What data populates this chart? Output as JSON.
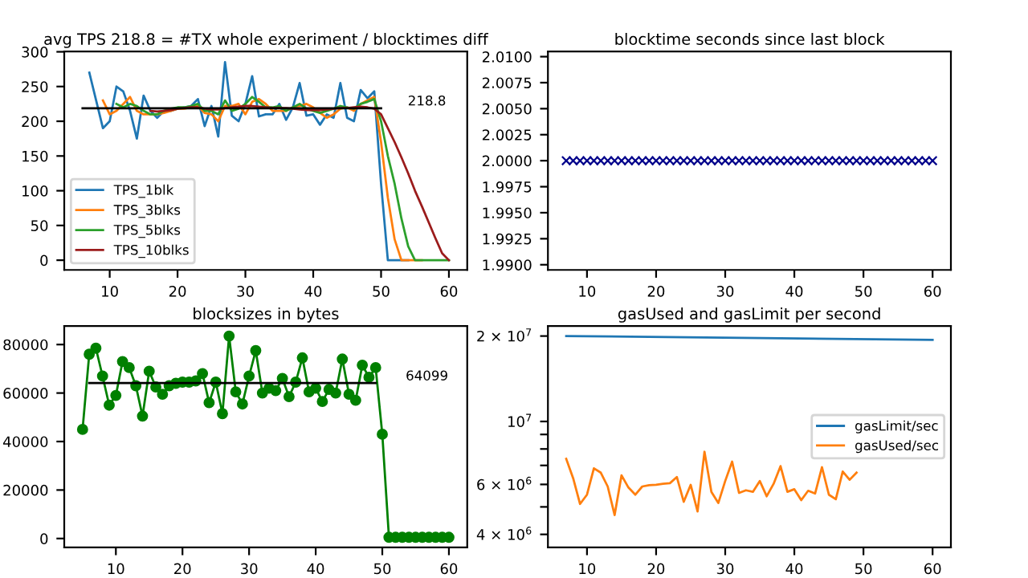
{
  "chart_data": [
    {
      "type": "line",
      "title": "avg TPS 218.8 = #TX whole experiment / blocktimes diff",
      "xlim": [
        3.3,
        62.7
      ],
      "xticks": [
        10,
        20,
        30,
        40,
        50,
        60
      ],
      "ylim": [
        -14,
        300.5
      ],
      "yticks": [
        0,
        50,
        100,
        150,
        200,
        250,
        300
      ],
      "legend": "lower left",
      "annotations": [
        "218.8"
      ],
      "series": [
        {
          "name": "TPS_1blk",
          "color": "#1f77b4",
          "x": [
            7,
            8,
            9,
            10,
            11,
            12,
            13,
            14,
            15,
            16,
            17,
            18,
            19,
            20,
            21,
            22,
            23,
            24,
            25,
            26,
            27,
            28,
            29,
            30,
            31,
            32,
            33,
            34,
            35,
            36,
            37,
            38,
            39,
            40,
            41,
            42,
            43,
            44,
            45,
            46,
            47,
            48,
            49,
            50,
            51,
            52,
            53,
            54
          ],
          "values": [
            270,
            230,
            190,
            200,
            250,
            243,
            215,
            175,
            237,
            215,
            205,
            215,
            215,
            218,
            220,
            222,
            232,
            193,
            222,
            178,
            285,
            208,
            200,
            225,
            265,
            207,
            210,
            210,
            225,
            202,
            220,
            255,
            208,
            210,
            195,
            210,
            205,
            255,
            205,
            200,
            245,
            233,
            243,
            110,
            0,
            0,
            0,
            0
          ]
        },
        {
          "name": "TPS_3blks",
          "color": "#ff7f0e",
          "x": [
            9,
            10,
            11,
            12,
            13,
            14,
            15,
            16,
            17,
            18,
            19,
            20,
            21,
            22,
            23,
            24,
            25,
            26,
            27,
            28,
            29,
            30,
            31,
            32,
            33,
            34,
            35,
            36,
            37,
            38,
            39,
            40,
            41,
            42,
            43,
            44,
            45,
            46,
            47,
            48,
            49,
            50,
            51,
            52,
            53,
            54,
            55,
            56
          ],
          "values": [
            230,
            210,
            215,
            225,
            235,
            215,
            210,
            210,
            210,
            212,
            215,
            218,
            218,
            220,
            222,
            212,
            210,
            200,
            222,
            222,
            225,
            210,
            228,
            232,
            225,
            215,
            215,
            215,
            220,
            222,
            225,
            220,
            212,
            205,
            210,
            218,
            220,
            215,
            225,
            230,
            235,
            170,
            90,
            30,
            0,
            0,
            0,
            0
          ]
        },
        {
          "name": "TPS_5blks",
          "color": "#2ca02c",
          "x": [
            11,
            12,
            13,
            14,
            15,
            16,
            17,
            18,
            19,
            20,
            21,
            22,
            23,
            24,
            25,
            26,
            27,
            28,
            29,
            30,
            31,
            32,
            33,
            34,
            35,
            36,
            37,
            38,
            39,
            40,
            41,
            42,
            43,
            44,
            45,
            46,
            47,
            48,
            49,
            50,
            51,
            52,
            53,
            54,
            55,
            56,
            57,
            58,
            59,
            60
          ],
          "values": [
            225,
            220,
            225,
            222,
            215,
            210,
            210,
            215,
            218,
            220,
            220,
            222,
            225,
            215,
            215,
            210,
            230,
            215,
            218,
            225,
            235,
            228,
            220,
            220,
            222,
            215,
            220,
            225,
            218,
            215,
            212,
            215,
            218,
            222,
            220,
            218,
            225,
            228,
            232,
            200,
            150,
            110,
            60,
            20,
            0,
            0,
            0,
            0,
            0,
            0
          ]
        },
        {
          "name": "TPS_10blks",
          "color": "#9b1c1c",
          "x": [
            16,
            17,
            18,
            19,
            20,
            21,
            22,
            23,
            24,
            25,
            26,
            27,
            28,
            29,
            30,
            31,
            32,
            33,
            34,
            35,
            36,
            37,
            38,
            39,
            40,
            41,
            42,
            43,
            44,
            45,
            46,
            47,
            48,
            49,
            50,
            51,
            52,
            53,
            54,
            55,
            56,
            57,
            58,
            59,
            60
          ],
          "values": [
            215,
            214,
            215,
            216,
            218,
            219,
            220,
            220,
            218,
            217,
            217,
            219,
            220,
            221,
            222,
            222,
            221,
            220,
            219,
            219,
            219,
            218,
            217,
            216,
            216,
            216,
            217,
            218,
            219,
            219,
            220,
            221,
            220,
            218,
            210,
            190,
            170,
            148,
            125,
            100,
            78,
            55,
            32,
            10,
            0
          ]
        },
        {
          "color": "#000000",
          "x": [
            6,
            50
          ],
          "values": [
            218.8,
            218.8
          ]
        }
      ]
    },
    {
      "type": "scatter",
      "title": "blocktime seconds since last block",
      "xlim": [
        4.35,
        62.65
      ],
      "xticks": [
        10,
        20,
        30,
        40,
        50,
        60
      ],
      "ylim": [
        1.9895,
        2.0105
      ],
      "yticks": [
        {
          "value": 1.99,
          "label": "1.9900"
        },
        {
          "value": 1.9925,
          "label": "1.9925"
        },
        {
          "value": 1.995,
          "label": "1.9950"
        },
        {
          "value": 1.9975,
          "label": "1.9975"
        },
        {
          "value": 2.0,
          "label": "2.0000"
        },
        {
          "value": 2.0025,
          "label": "2.0025"
        },
        {
          "value": 2.005,
          "label": "2.0050"
        },
        {
          "value": 2.0075,
          "label": "2.0075"
        },
        {
          "value": 2.01,
          "label": "2.0100"
        }
      ],
      "marker": "cross",
      "series": [
        {
          "color": "#00008b",
          "x": [
            7,
            8,
            9,
            10,
            11,
            12,
            13,
            14,
            15,
            16,
            17,
            18,
            19,
            20,
            21,
            22,
            23,
            24,
            25,
            26,
            27,
            28,
            29,
            30,
            31,
            32,
            33,
            34,
            35,
            36,
            37,
            38,
            39,
            40,
            41,
            42,
            43,
            44,
            45,
            46,
            47,
            48,
            49,
            50,
            51,
            52,
            53,
            54,
            55,
            56,
            57,
            58,
            59,
            60
          ],
          "values": [
            2.0,
            2.0,
            2.0,
            2.0,
            2.0,
            2.0,
            2.0,
            2.0,
            2.0,
            2.0,
            2.0,
            2.0,
            2.0,
            2.0,
            2.0,
            2.0,
            2.0,
            2.0,
            2.0,
            2.0,
            2.0,
            2.0,
            2.0,
            2.0,
            2.0,
            2.0,
            2.0,
            2.0,
            2.0,
            2.0,
            2.0,
            2.0,
            2.0,
            2.0,
            2.0,
            2.0,
            2.0,
            2.0,
            2.0,
            2.0,
            2.0,
            2.0,
            2.0,
            2.0,
            2.0,
            2.0,
            2.0,
            2.0,
            2.0,
            2.0,
            2.0,
            2.0,
            2.0,
            2.0
          ]
        }
      ]
    },
    {
      "type": "line",
      "title": "blocksizes in bytes",
      "xlim": [
        2.25,
        62.75
      ],
      "xticks": [
        10,
        20,
        30,
        40,
        50,
        60
      ],
      "ylim": [
        -3650,
        87650
      ],
      "yticks": [
        0,
        20000,
        40000,
        60000,
        80000
      ],
      "annotations": [
        "64099"
      ],
      "series": [
        {
          "color": "#008000",
          "marker": "circle",
          "x": [
            5,
            6,
            7,
            8,
            9,
            10,
            11,
            12,
            13,
            14,
            15,
            16,
            17,
            18,
            19,
            20,
            21,
            22,
            23,
            24,
            25,
            26,
            27,
            28,
            29,
            30,
            31,
            32,
            33,
            34,
            35,
            36,
            37,
            38,
            39,
            40,
            41,
            42,
            43,
            44,
            45,
            46,
            47,
            48,
            49,
            50,
            51,
            52,
            53,
            54,
            55,
            56,
            57,
            58,
            59,
            60
          ],
          "values": [
            45000,
            76000,
            78500,
            67000,
            55000,
            59000,
            73000,
            70500,
            63000,
            50500,
            69000,
            62500,
            59500,
            63000,
            64000,
            64500,
            64500,
            65000,
            68000,
            56000,
            64500,
            51500,
            83500,
            60500,
            55500,
            67000,
            77500,
            60000,
            62000,
            61000,
            66000,
            58500,
            64500,
            74500,
            60500,
            62000,
            56500,
            61500,
            60000,
            74000,
            59500,
            57000,
            71500,
            66500,
            70500,
            43000,
            500,
            500,
            500,
            500,
            500,
            500,
            500,
            500,
            500,
            500
          ]
        },
        {
          "color": "#000000",
          "x": [
            6,
            49
          ],
          "values": [
            64099,
            64099
          ]
        }
      ]
    },
    {
      "type": "line",
      "title": "gasUsed and gasLimit per second",
      "log": true,
      "xlim": [
        4.35,
        62.65
      ],
      "xticks": [
        10,
        20,
        30,
        40,
        50,
        60
      ],
      "ylim": [
        3600000,
        21700000
      ],
      "yticks": [
        {
          "value": 4000000,
          "label": "4 × 10$^{6}$"
        },
        {
          "value": 5000000,
          "label": null
        },
        {
          "value": 6000000,
          "label": "6 × 10$^{6}$"
        },
        {
          "value": 7000000,
          "label": null
        },
        {
          "value": 8000000,
          "label": null
        },
        {
          "value": 9000000,
          "label": null
        },
        {
          "value": 10000000,
          "label": "10$^{7}$"
        },
        {
          "value": 20000000,
          "label": "2 × 10$^{7}$"
        }
      ],
      "legend": "center right",
      "series": [
        {
          "name": "gasLimit/sec",
          "color": "#1f77b4",
          "x": [
            7,
            60
          ],
          "values": [
            20000000,
            19400000
          ]
        },
        {
          "name": "gasUsed/sec",
          "color": "#ff7f0e",
          "x": [
            7,
            8,
            9,
            10,
            11,
            12,
            13,
            14,
            15,
            16,
            17,
            18,
            19,
            20,
            21,
            22,
            23,
            24,
            25,
            26,
            27,
            28,
            29,
            30,
            31,
            32,
            33,
            34,
            35,
            36,
            37,
            38,
            39,
            40,
            41,
            42,
            43,
            44,
            45,
            46,
            47,
            48,
            49
          ],
          "values": [
            7380000,
            6310000,
            5120000,
            5520000,
            6840000,
            6600000,
            5900000,
            4680000,
            6460000,
            5850000,
            5520000,
            5900000,
            5960000,
            5980000,
            6030000,
            6060000,
            6370000,
            5210000,
            5980000,
            4820000,
            7820000,
            5650000,
            5160000,
            6170000,
            7220000,
            5600000,
            5720000,
            5650000,
            6170000,
            5450000,
            6030000,
            6960000,
            5650000,
            5770000,
            5280000,
            5700000,
            5570000,
            6900000,
            5520000,
            5320000,
            6660000,
            6230000,
            6600000
          ]
        }
      ]
    }
  ]
}
